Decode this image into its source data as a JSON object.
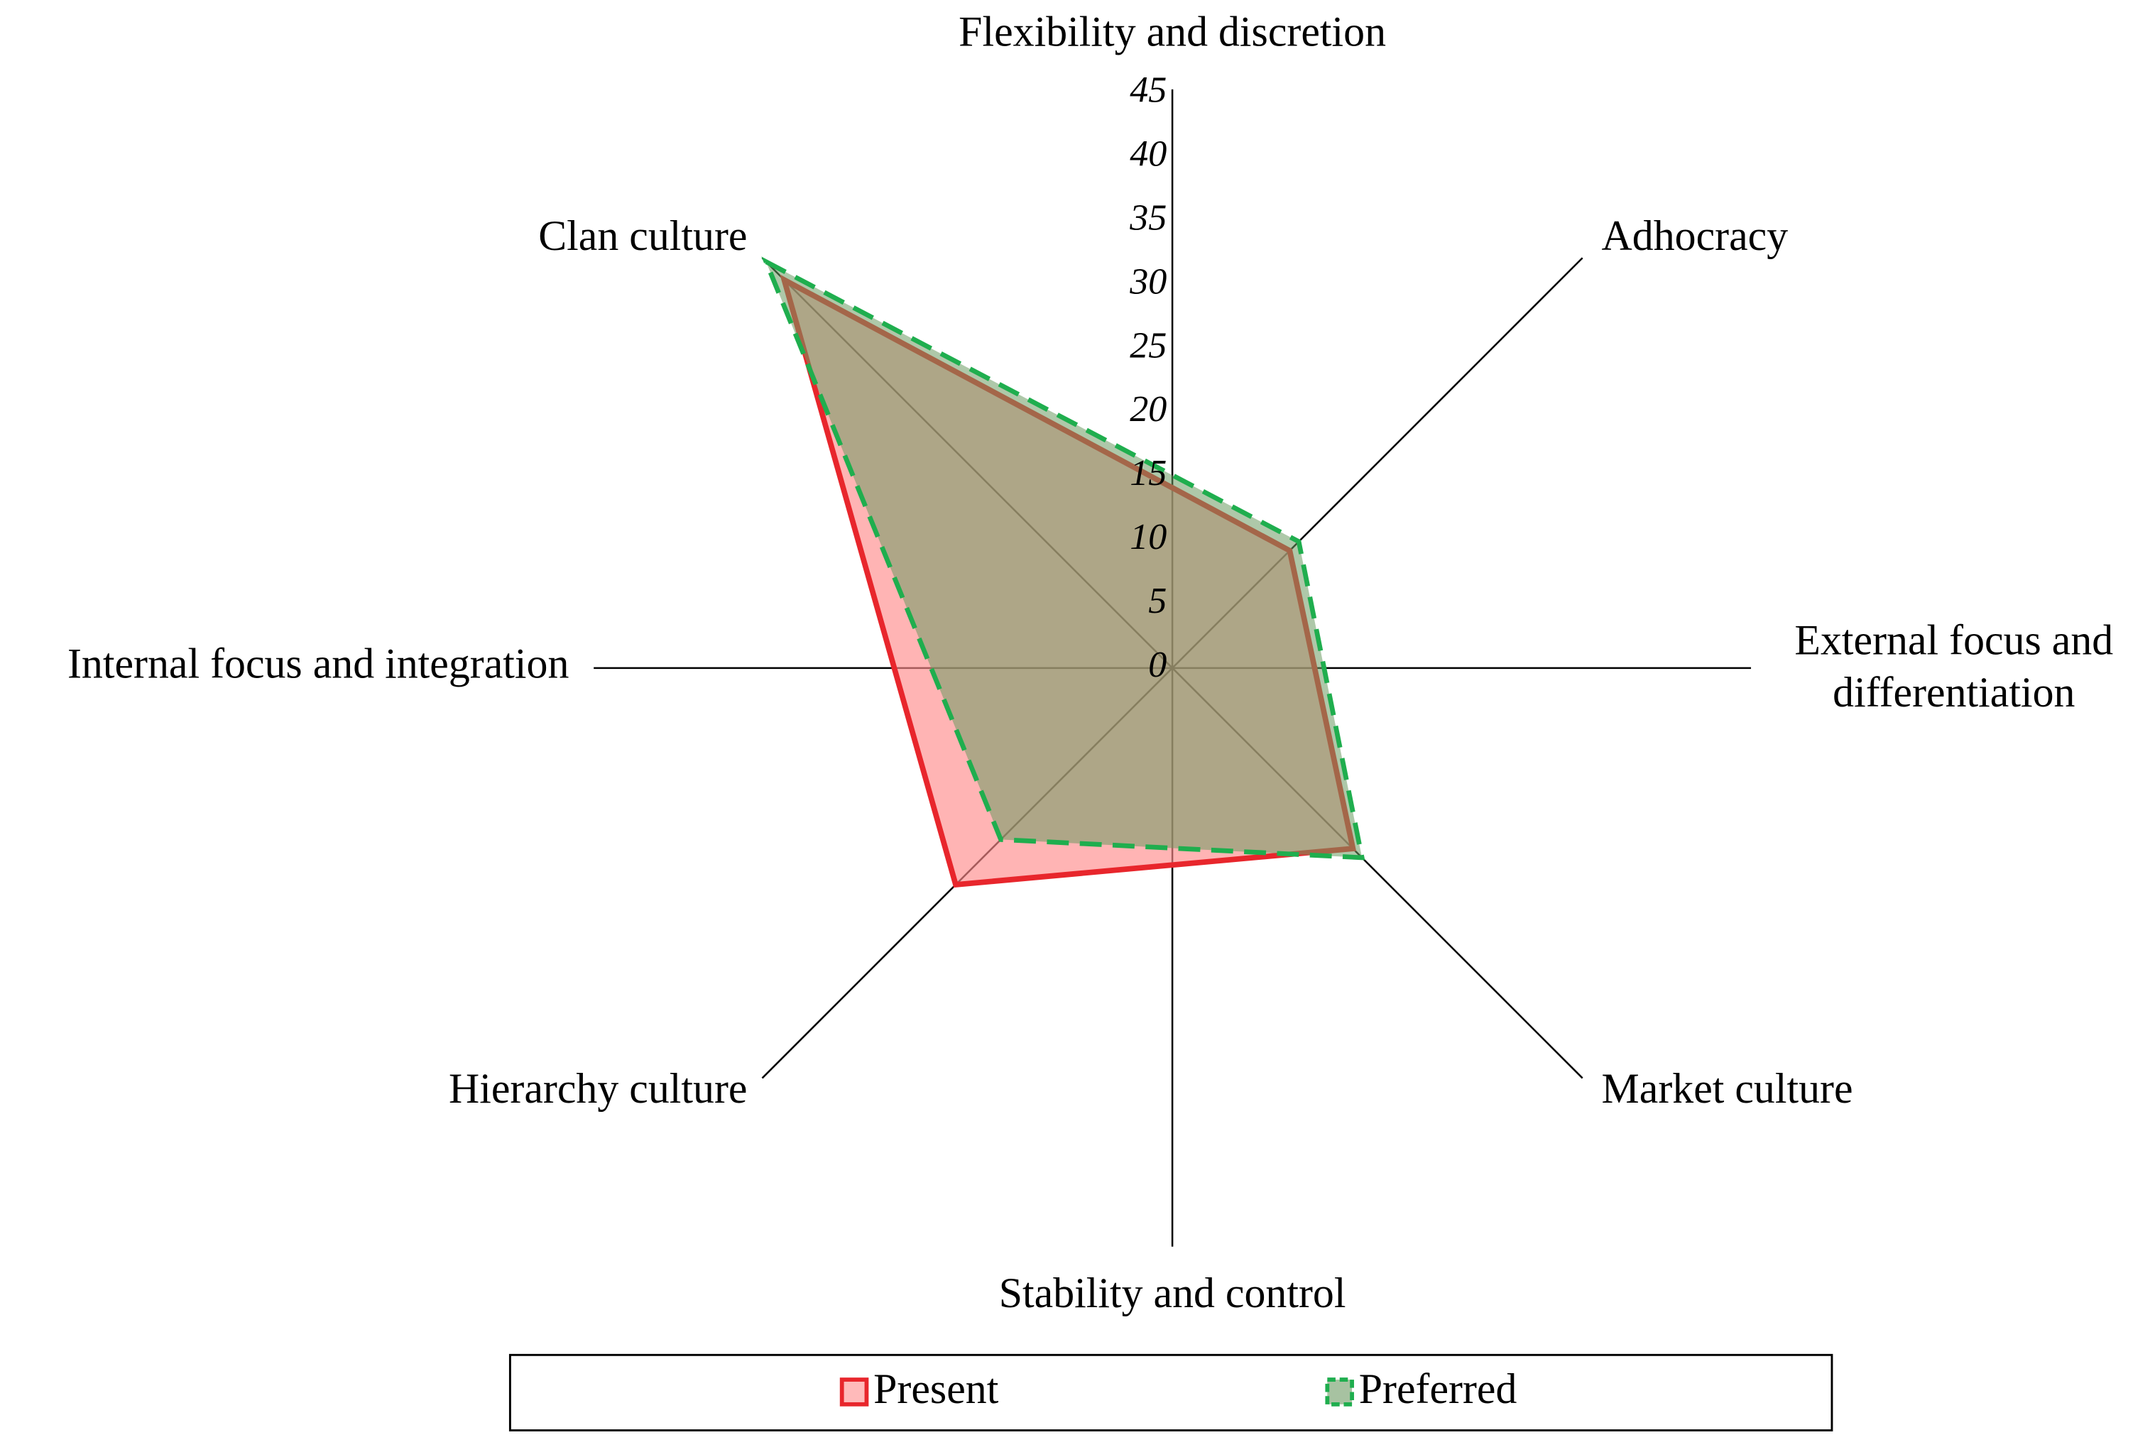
{
  "chart_data": {
    "type": "radar",
    "axis_labels": {
      "top": "Flexibility and discretion",
      "right": "External focus and differentiation",
      "bottom": "Stability and control",
      "left": "Internal focus and integration"
    },
    "categories": [
      "Clan culture",
      "Adhocracy",
      "Market culture",
      "Hierarchy culture"
    ],
    "series": [
      {
        "name": "Present",
        "color": "#e8262c",
        "fill": "#ff8c8c",
        "values": [
          43,
          13,
          20,
          24
        ]
      },
      {
        "name": "Preferred",
        "color": "#1fae4e",
        "fill": "#6c9a62",
        "values": [
          45,
          14,
          21,
          19
        ]
      }
    ],
    "ylim": [
      0,
      45
    ],
    "yticks": [
      0,
      5,
      10,
      15,
      20,
      25,
      30,
      35,
      40,
      45
    ]
  }
}
